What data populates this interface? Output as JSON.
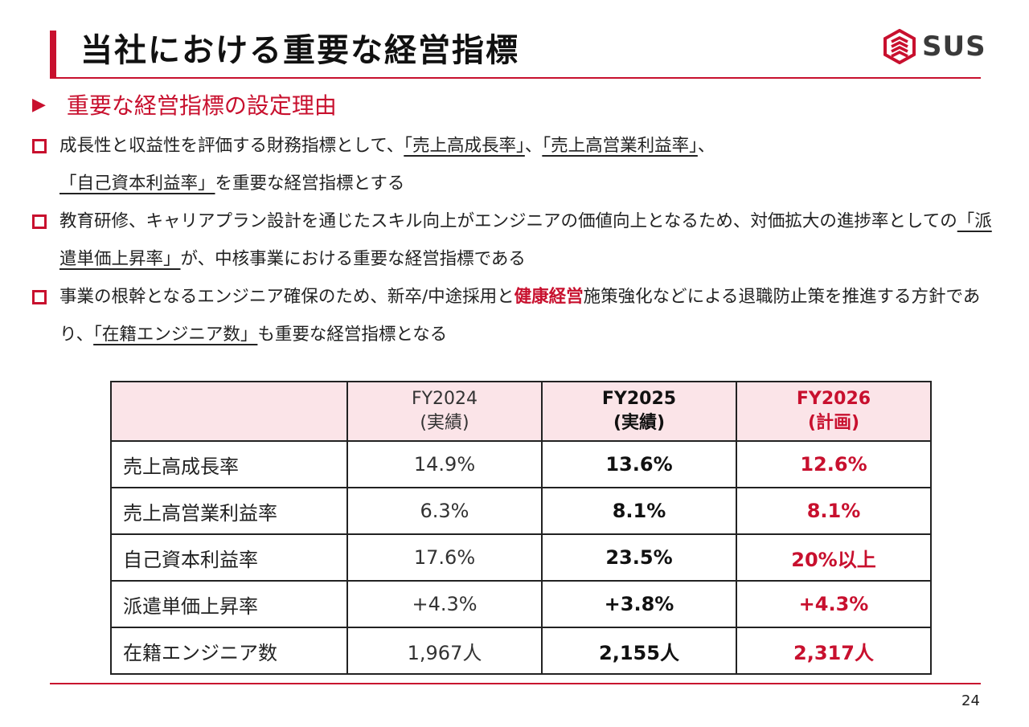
{
  "header": {
    "title": "当社における重要な経営指標",
    "logo_text": "SUS",
    "logo_icon": "sus-logo-icon",
    "accent_color": "#c8102e"
  },
  "section": {
    "heading": "重要な経営指標の設定理由"
  },
  "bullets": [
    {
      "parts": [
        {
          "text": "成長性と収益性を評価する財務指標として、",
          "style": "plain"
        },
        {
          "text": "「売上高成長率」",
          "style": "underline"
        },
        {
          "text": "、",
          "style": "plain"
        },
        {
          "text": "「売上高営業利益率」",
          "style": "underline"
        },
        {
          "text": "、",
          "style": "plain"
        },
        {
          "text": "「自己資本利益率」",
          "style": "underline"
        },
        {
          "text": "を重要な経営指標とする",
          "style": "plain"
        }
      ]
    },
    {
      "parts": [
        {
          "text": "教育研修、キャリアプラン設計を通じたスキル向上がエンジニアの価値向上となるため、対価拡大の進捗率としての",
          "style": "plain"
        },
        {
          "text": "「派遣単価上昇率」",
          "style": "underline"
        },
        {
          "text": "が、中核事業における重要な経営指標である",
          "style": "plain"
        }
      ]
    },
    {
      "parts": [
        {
          "text": "事業の根幹となるエンジニア確保のため、新卒/中途採用と",
          "style": "plain"
        },
        {
          "text": "健康経営",
          "style": "emphasis"
        },
        {
          "text": "施策強化などによる退職防止策を推進する方針であり、",
          "style": "plain"
        },
        {
          "text": "「在籍エンジニア数」",
          "style": "underline"
        },
        {
          "text": "も重要な経営指標となる",
          "style": "plain"
        }
      ]
    }
  ],
  "table": {
    "columns": [
      {
        "label": "",
        "sub": ""
      },
      {
        "label": "FY2024",
        "sub": "(実績)"
      },
      {
        "label": "FY2025",
        "sub": "(実績)"
      },
      {
        "label": "FY2026",
        "sub": "(計画)"
      }
    ],
    "rows": [
      {
        "name": "売上高成長率",
        "fy2024": "14.9%",
        "fy2025": "13.6%",
        "fy2026": "12.6%"
      },
      {
        "name": "売上高営業利益率",
        "fy2024": "6.3%",
        "fy2025": "8.1%",
        "fy2026": "8.1%"
      },
      {
        "name": "自己資本利益率",
        "fy2024": "17.6%",
        "fy2025": "23.5%",
        "fy2026": "20%以上"
      },
      {
        "name": "派遣単価上昇率",
        "fy2024": "+4.3%",
        "fy2025": "+3.8%",
        "fy2026": "+4.3%"
      },
      {
        "name": "在籍エンジニア数",
        "fy2024": "1,967人",
        "fy2025": "2,155人",
        "fy2026": "2,317人"
      }
    ]
  },
  "footer": {
    "page_number": "24"
  }
}
